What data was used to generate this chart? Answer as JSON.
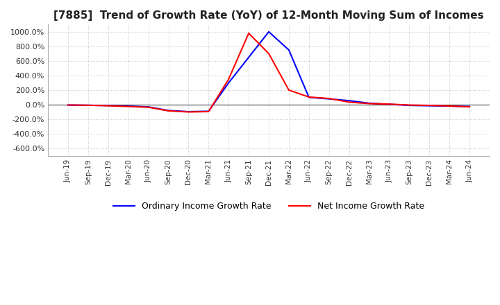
{
  "title": "[7885]  Trend of Growth Rate (YoY) of 12-Month Moving Sum of Incomes",
  "title_fontsize": 11,
  "ylim": [
    -700,
    1100
  ],
  "yticks": [
    -600,
    -400,
    -200,
    0,
    200,
    400,
    600,
    800,
    1000
  ],
  "yticklabels": [
    "-600.0%",
    "-400.0%",
    "-200.0%",
    "0.0%",
    "200.0%",
    "400.0%",
    "600.0%",
    "800.0%",
    "1000.0%"
  ],
  "legend_labels": [
    "Ordinary Income Growth Rate",
    "Net Income Growth Rate"
  ],
  "line_colors": [
    "#0000ff",
    "#ff0000"
  ],
  "background_color": "#ffffff",
  "grid_color": "#bbbbbb",
  "ordinary_income_gr": [
    -5,
    -8,
    -12,
    -20,
    -30,
    -80,
    -95,
    -90,
    300,
    650,
    1000,
    750,
    100,
    80,
    55,
    20,
    5,
    -10,
    -15,
    -20,
    -25
  ],
  "net_income_gr": [
    -5,
    -8,
    -15,
    -25,
    -35,
    -85,
    -100,
    -95,
    350,
    980,
    700,
    200,
    105,
    85,
    35,
    15,
    8,
    -5,
    -10,
    -18,
    -30
  ],
  "x_tick_labels": [
    "Jun-19",
    "Sep-19",
    "Dec-19",
    "Mar-20",
    "Jun-20",
    "Sep-20",
    "Dec-20",
    "Mar-21",
    "Jun-21",
    "Sep-21",
    "Dec-21",
    "Mar-22",
    "Jun-22",
    "Sep-22",
    "Dec-22",
    "Mar-23",
    "Jun-23",
    "Sep-23",
    "Dec-23",
    "Mar-24",
    "Jun-24"
  ]
}
